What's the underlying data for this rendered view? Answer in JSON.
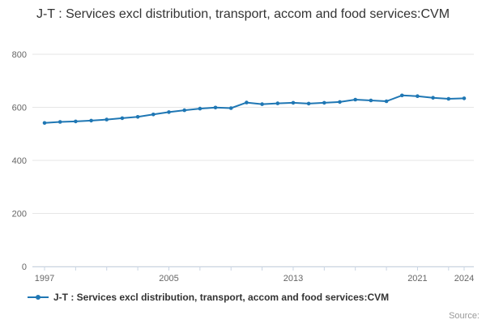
{
  "chart": {
    "title": "J-T : Services excl distribution, transport, accom and food services:CVM",
    "legend_label": "J-T : Services excl distribution, transport, accom and food services:CVM",
    "source_label": "Source:",
    "colors": {
      "line": "#1f77b4",
      "grid": "#e6e6e6",
      "axis": "#c8d4e3",
      "text": "#666666",
      "title_text": "#333333"
    }
  },
  "chart_data": {
    "type": "line",
    "title": "J-T : Services excl distribution, transport, accom and food services:CVM",
    "xlabel": "",
    "ylabel": "",
    "ylim": [
      0,
      800
    ],
    "yticks": [
      0,
      200,
      400,
      600,
      800
    ],
    "xticks_labeled": [
      1997,
      2005,
      2013,
      2021,
      2024
    ],
    "grid": true,
    "legend_position": "bottom-left",
    "x": [
      1997,
      1998,
      1999,
      2000,
      2001,
      2002,
      2003,
      2004,
      2005,
      2006,
      2007,
      2008,
      2009,
      2010,
      2011,
      2012,
      2013,
      2014,
      2015,
      2016,
      2017,
      2018,
      2019,
      2020,
      2021,
      2022,
      2023,
      2024
    ],
    "series": [
      {
        "name": "J-T : Services excl distribution, transport, accom and food services:CVM",
        "values": [
          541,
          545,
          547,
          550,
          554,
          559,
          564,
          573,
          582,
          589,
          595,
          599,
          597,
          618,
          612,
          615,
          617,
          614,
          617,
          620,
          629,
          626,
          623,
          645,
          642,
          636,
          632,
          634
        ]
      }
    ]
  }
}
